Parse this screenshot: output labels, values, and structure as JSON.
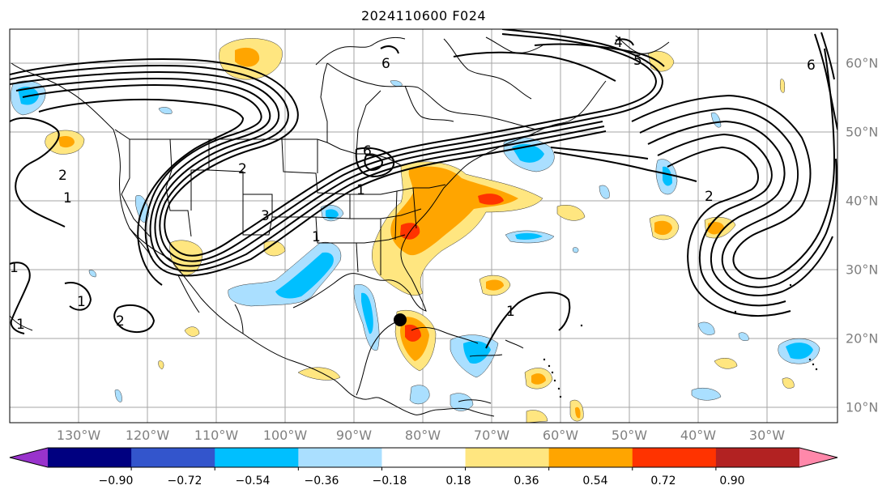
{
  "title": "2024110600 F024",
  "longitude_labels": [
    "130°W",
    "120°W",
    "110°W",
    "100°W",
    "90°W",
    "80°W",
    "70°W",
    "60°W",
    "50°W",
    "40°W",
    "30°W"
  ],
  "latitude_labels": [
    "60°N",
    "50°N",
    "40°N",
    "30°N",
    "20°N",
    "10°N"
  ],
  "contour_labels": [
    "6",
    "5",
    "4",
    "2",
    "1",
    "6",
    "3",
    "2",
    "1",
    "1",
    "2",
    "1",
    "1",
    "2",
    "1",
    "6",
    "1"
  ],
  "colorbar": {
    "tick_labels": [
      "−0.90",
      "−0.72",
      "−0.54",
      "−0.36",
      "−0.18",
      "0.18",
      "0.36",
      "0.54",
      "0.72",
      "0.90"
    ],
    "colors": [
      "#9933cc",
      "#000080",
      "#3355cc",
      "#00bfff",
      "#aadfff",
      "#ffffff",
      "#ffe680",
      "#ffa500",
      "#ff3300",
      "#b22222",
      "#ff88aa"
    ],
    "extend": "both"
  },
  "marker": "storm-center-dot"
}
